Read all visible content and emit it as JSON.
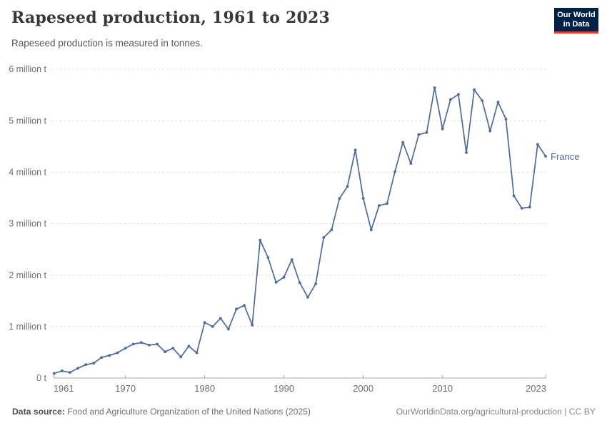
{
  "header": {
    "title": "Rapeseed production, 1961 to 2023",
    "subtitle": "Rapeseed production is measured in tonnes.",
    "logo": {
      "line1": "Our World",
      "line2": "in Data",
      "bg_color": "#002147",
      "accent_color": "#dc3b2f"
    }
  },
  "chart_data": {
    "type": "line",
    "title": "Rapeseed production, 1961 to 2023",
    "ylabel": "",
    "xlabel": "",
    "unit": "tonnes",
    "values_unit": "million tonnes",
    "xlim": [
      1961,
      2023
    ],
    "ylim": [
      0,
      6
    ],
    "grid": "horizontal-dashed",
    "legend_position": "end-of-line",
    "x_ticks": [
      1961,
      1970,
      1980,
      1990,
      2000,
      2010,
      2023
    ],
    "y_ticks": [
      {
        "value": 0,
        "label": "0 t"
      },
      {
        "value": 1,
        "label": "1 million t"
      },
      {
        "value": 2,
        "label": "2 million t"
      },
      {
        "value": 3,
        "label": "3 million t"
      },
      {
        "value": 4,
        "label": "4 million t"
      },
      {
        "value": 5,
        "label": "5 million t"
      },
      {
        "value": 6,
        "label": "6 million t"
      }
    ],
    "series": [
      {
        "name": "France",
        "color": "#4c6a9c",
        "x": [
          1961,
          1962,
          1963,
          1964,
          1965,
          1966,
          1967,
          1968,
          1969,
          1970,
          1971,
          1972,
          1973,
          1974,
          1975,
          1976,
          1977,
          1978,
          1979,
          1980,
          1981,
          1982,
          1983,
          1984,
          1985,
          1986,
          1987,
          1988,
          1989,
          1990,
          1991,
          1992,
          1993,
          1994,
          1995,
          1996,
          1997,
          1998,
          1999,
          2000,
          2001,
          2002,
          2003,
          2004,
          2005,
          2006,
          2007,
          2008,
          2009,
          2010,
          2011,
          2012,
          2013,
          2014,
          2015,
          2016,
          2017,
          2018,
          2019,
          2020,
          2021,
          2022,
          2023
        ],
        "values": [
          0.09,
          0.14,
          0.11,
          0.19,
          0.26,
          0.29,
          0.4,
          0.44,
          0.49,
          0.58,
          0.66,
          0.69,
          0.64,
          0.66,
          0.51,
          0.58,
          0.41,
          0.62,
          0.49,
          1.08,
          1.0,
          1.16,
          0.95,
          1.34,
          1.41,
          1.03,
          2.68,
          2.34,
          1.86,
          1.96,
          2.3,
          1.85,
          1.57,
          1.83,
          2.73,
          2.88,
          3.49,
          3.72,
          4.43,
          3.49,
          2.88,
          3.35,
          3.39,
          4.01,
          4.58,
          4.17,
          4.73,
          4.77,
          5.64,
          4.84,
          5.41,
          5.51,
          4.38,
          5.6,
          5.39,
          4.8,
          5.36,
          5.03,
          3.54,
          3.3,
          3.32,
          4.54,
          4.31
        ]
      }
    ]
  },
  "footer": {
    "source_label": "Data source:",
    "source_text": " Food and Agriculture Organization of the United Nations (2025)",
    "link_text": "OurWorldinData.org/agricultural-production | CC BY"
  },
  "colors": {
    "gridline": "#dcdcdc",
    "axis": "#a6a6a6",
    "tick_label": "#6e6e6e"
  }
}
